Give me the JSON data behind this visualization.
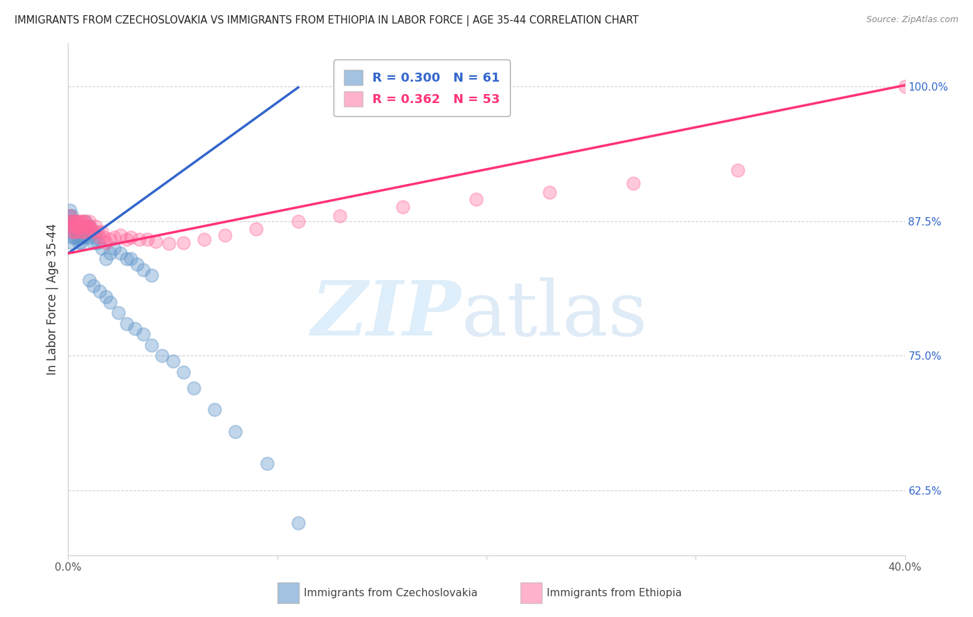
{
  "title": "IMMIGRANTS FROM CZECHOSLOVAKIA VS IMMIGRANTS FROM ETHIOPIA IN LABOR FORCE | AGE 35-44 CORRELATION CHART",
  "source": "Source: ZipAtlas.com",
  "ylabel": "In Labor Force | Age 35-44",
  "xlim": [
    0.0,
    0.4
  ],
  "ylim": [
    0.565,
    1.04
  ],
  "yticks": [
    0.625,
    0.75,
    0.875,
    1.0
  ],
  "ytick_labels": [
    "62.5%",
    "75.0%",
    "87.5%",
    "100.0%"
  ],
  "xticks": [
    0.0,
    0.1,
    0.2,
    0.3,
    0.4
  ],
  "xtick_labels": [
    "0.0%",
    "",
    "",
    "",
    "40.0%"
  ],
  "blue_R": 0.3,
  "blue_N": 61,
  "pink_R": 0.362,
  "pink_N": 53,
  "blue_color": "#6699CC",
  "pink_color": "#FF6699",
  "blue_line_color": "#3366CC",
  "pink_line_color": "#FF3377",
  "background_color": "#FFFFFF",
  "grid_color": "#CCCCCC",
  "blue_scatter_x": [
    0.001,
    0.001,
    0.001,
    0.001,
    0.002,
    0.002,
    0.002,
    0.002,
    0.002,
    0.003,
    0.003,
    0.003,
    0.003,
    0.004,
    0.004,
    0.004,
    0.005,
    0.005,
    0.005,
    0.006,
    0.006,
    0.006,
    0.007,
    0.007,
    0.008,
    0.008,
    0.009,
    0.01,
    0.01,
    0.011,
    0.012,
    0.013,
    0.014,
    0.016,
    0.018,
    0.02,
    0.022,
    0.025,
    0.028,
    0.03,
    0.033,
    0.036,
    0.04,
    0.01,
    0.012,
    0.015,
    0.018,
    0.02,
    0.024,
    0.028,
    0.032,
    0.036,
    0.04,
    0.045,
    0.05,
    0.055,
    0.06,
    0.07,
    0.08,
    0.095,
    0.11
  ],
  "blue_scatter_y": [
    0.87,
    0.88,
    0.875,
    0.885,
    0.87,
    0.875,
    0.88,
    0.86,
    0.855,
    0.865,
    0.87,
    0.875,
    0.86,
    0.87,
    0.865,
    0.86,
    0.87,
    0.855,
    0.865,
    0.87,
    0.86,
    0.855,
    0.87,
    0.86,
    0.875,
    0.86,
    0.865,
    0.86,
    0.87,
    0.865,
    0.855,
    0.86,
    0.855,
    0.85,
    0.84,
    0.845,
    0.85,
    0.845,
    0.84,
    0.84,
    0.835,
    0.83,
    0.825,
    0.82,
    0.815,
    0.81,
    0.805,
    0.8,
    0.79,
    0.78,
    0.775,
    0.77,
    0.76,
    0.75,
    0.745,
    0.735,
    0.72,
    0.7,
    0.68,
    0.65,
    0.595
  ],
  "pink_scatter_x": [
    0.001,
    0.001,
    0.002,
    0.002,
    0.002,
    0.003,
    0.003,
    0.003,
    0.004,
    0.004,
    0.004,
    0.005,
    0.005,
    0.006,
    0.006,
    0.006,
    0.007,
    0.007,
    0.008,
    0.008,
    0.009,
    0.009,
    0.01,
    0.01,
    0.011,
    0.012,
    0.013,
    0.014,
    0.015,
    0.016,
    0.017,
    0.018,
    0.02,
    0.022,
    0.025,
    0.028,
    0.03,
    0.034,
    0.038,
    0.042,
    0.048,
    0.055,
    0.065,
    0.075,
    0.09,
    0.11,
    0.13,
    0.16,
    0.195,
    0.23,
    0.27,
    0.32,
    0.4
  ],
  "pink_scatter_y": [
    0.875,
    0.88,
    0.87,
    0.875,
    0.865,
    0.875,
    0.87,
    0.865,
    0.875,
    0.87,
    0.865,
    0.875,
    0.87,
    0.875,
    0.865,
    0.87,
    0.875,
    0.865,
    0.87,
    0.875,
    0.87,
    0.865,
    0.875,
    0.87,
    0.868,
    0.865,
    0.87,
    0.865,
    0.86,
    0.865,
    0.86,
    0.855,
    0.858,
    0.86,
    0.862,
    0.858,
    0.86,
    0.858,
    0.858,
    0.856,
    0.854,
    0.855,
    0.858,
    0.862,
    0.868,
    0.875,
    0.88,
    0.888,
    0.895,
    0.902,
    0.91,
    0.922,
    1.0
  ],
  "blue_line_x": [
    0.0,
    0.11
  ],
  "blue_line_y_intercept": 0.845,
  "blue_line_slope": 1.4,
  "pink_line_x": [
    0.0,
    0.4
  ],
  "pink_line_y_intercept": 0.845,
  "pink_line_slope": 0.39
}
